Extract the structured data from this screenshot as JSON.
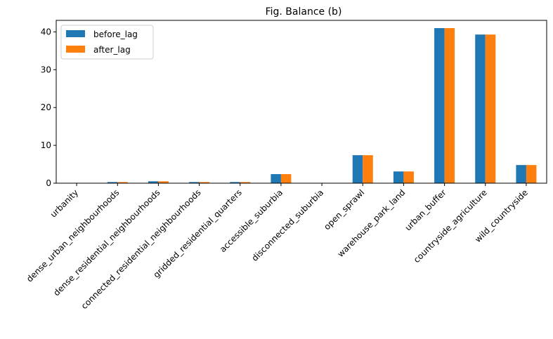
{
  "chart_data": {
    "type": "bar",
    "title": "Fig. Balance (b)",
    "xlabel": "",
    "ylabel": "",
    "categories": [
      "urbanity",
      "dense_urban_neighbourhoods",
      "dense_residential_neighbourhoods",
      "connected_residential_neighbourhoods",
      "gridded_residential_quarters",
      "accessible_suburbia",
      "disconnected_suburbia",
      "open_sprawl",
      "warehouse_park_land",
      "urban_buffer",
      "countryside_agriculture",
      "wild_countryside"
    ],
    "series": [
      {
        "name": "before_lag",
        "color": "#1f77b4",
        "values": [
          0.0,
          0.3,
          0.5,
          0.3,
          0.3,
          2.4,
          0.0,
          7.4,
          3.1,
          41.0,
          39.3,
          4.8
        ]
      },
      {
        "name": "after_lag",
        "color": "#ff7f0e",
        "values": [
          0.0,
          0.3,
          0.5,
          0.3,
          0.3,
          2.4,
          0.0,
          7.4,
          3.1,
          41.0,
          39.3,
          4.8
        ]
      }
    ],
    "ylim": [
      0,
      43.05
    ],
    "yticks": [
      0,
      10,
      20,
      30,
      40
    ],
    "grid": false,
    "legend_position": "top-left"
  }
}
